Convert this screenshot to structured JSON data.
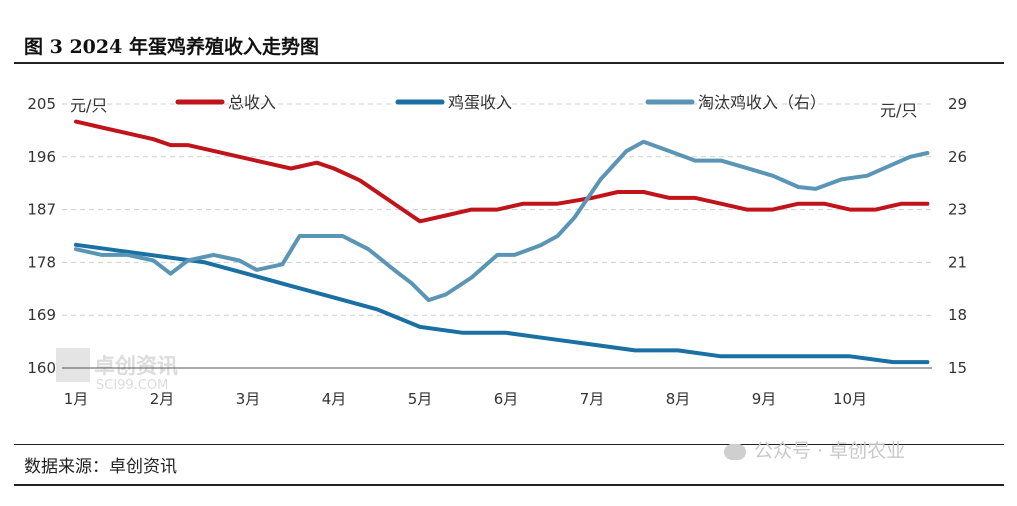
{
  "title": "图 3 2024 年蛋鸡养殖收入走势图",
  "source": "数据来源：卓创资讯",
  "watermarks": {
    "right": "公众号 · 卓创农业",
    "logo_cn": "卓创资讯",
    "logo_en": "SCI99.COM"
  },
  "chart_data": {
    "type": "line",
    "left_unit": "元/只",
    "right_unit": "元/只",
    "left_axis": {
      "ylim": [
        160,
        205
      ],
      "ticks": [
        160,
        169,
        178,
        187,
        196,
        205
      ]
    },
    "right_axis": {
      "ylim": [
        15,
        29
      ],
      "ticks": [
        15,
        18,
        21,
        23,
        26,
        29
      ]
    },
    "x_ticks": [
      "1月",
      "2月",
      "3月",
      "4月",
      "5月",
      "6月",
      "7月",
      "8月",
      "9月",
      "10月"
    ],
    "grid": "dashed horizontal",
    "legend_position": "top",
    "series": [
      {
        "name": "总收入",
        "axis": "left",
        "color": "#c0141b",
        "x": [
          0,
          0.3,
          0.6,
          0.9,
          1.1,
          1.3,
          1.6,
          1.9,
          2.2,
          2.5,
          2.8,
          3.0,
          3.3,
          3.6,
          3.9,
          4.0,
          4.3,
          4.6,
          4.9,
          5.2,
          5.6,
          6.0,
          6.3,
          6.6,
          6.9,
          7.2,
          7.5,
          7.8,
          8.1,
          8.4,
          8.7,
          9.0,
          9.3,
          9.6,
          9.9
        ],
        "values": [
          202,
          201,
          200,
          199,
          198,
          198,
          197,
          196,
          195,
          194,
          195,
          194,
          192,
          189,
          186,
          185,
          186,
          187,
          187,
          188,
          188,
          189,
          190,
          190,
          189,
          189,
          188,
          187,
          187,
          188,
          188,
          187,
          187,
          188,
          188
        ]
      },
      {
        "name": "鸡蛋收入",
        "axis": "left",
        "color": "#1a6fa3",
        "x": [
          0,
          0.5,
          1.0,
          1.5,
          2.0,
          2.5,
          3.0,
          3.5,
          4.0,
          4.5,
          5.0,
          5.5,
          6.0,
          6.5,
          7.0,
          7.5,
          8.0,
          8.5,
          9.0,
          9.5,
          9.9
        ],
        "values": [
          181,
          180,
          179,
          178,
          176,
          174,
          172,
          170,
          167,
          166,
          166,
          165,
          164,
          163,
          163,
          162,
          162,
          162,
          162,
          161,
          161
        ]
      },
      {
        "name": "淘汰鸡收入（右）",
        "axis": "right",
        "color": "#5b95b5",
        "x": [
          0,
          0.3,
          0.6,
          0.9,
          1.1,
          1.3,
          1.6,
          1.9,
          2.1,
          2.4,
          2.6,
          2.9,
          3.1,
          3.4,
          3.7,
          3.9,
          4.1,
          4.3,
          4.6,
          4.9,
          5.1,
          5.4,
          5.6,
          5.8,
          6.1,
          6.4,
          6.6,
          6.9,
          7.2,
          7.5,
          7.8,
          8.1,
          8.4,
          8.6,
          8.9,
          9.2,
          9.5,
          9.7,
          9.9
        ],
        "values": [
          21.3,
          21.0,
          21.0,
          20.7,
          20.0,
          20.7,
          21.0,
          20.7,
          20.2,
          20.5,
          22.0,
          22.0,
          22.0,
          21.3,
          20.2,
          19.5,
          18.6,
          18.9,
          19.8,
          21.0,
          21.0,
          21.5,
          22.0,
          23.0,
          25.0,
          26.5,
          27.0,
          26.5,
          26.0,
          26.0,
          25.6,
          25.2,
          24.6,
          24.5,
          25.0,
          25.2,
          25.8,
          26.2,
          26.4
        ]
      }
    ]
  }
}
